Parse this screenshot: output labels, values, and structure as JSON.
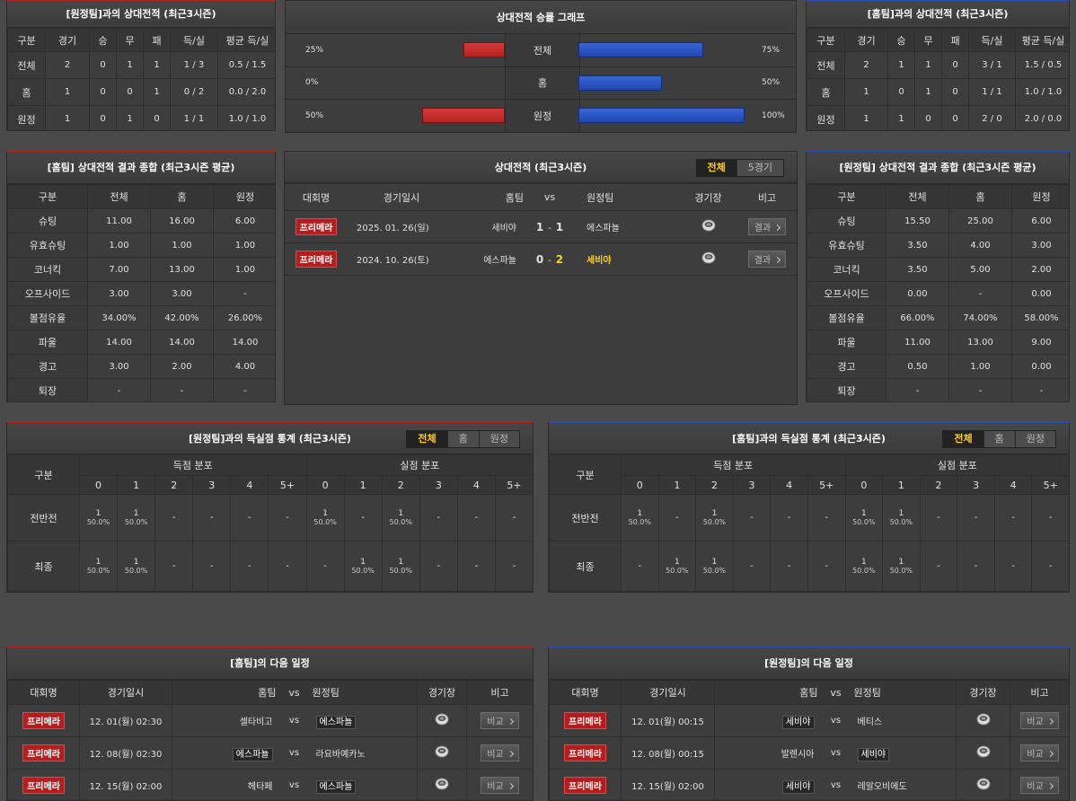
{
  "h2h_away": {
    "title": "[원정팀]과의 상대전적 (최근3시즌)",
    "header": [
      "구분",
      "경기",
      "승",
      "무",
      "패",
      "득/실",
      "평균 득/실"
    ],
    "rows": [
      [
        "전체",
        "2",
        "0",
        "1",
        "1",
        "1 / 3",
        "0.5 / 1.5"
      ],
      [
        "홈",
        "1",
        "0",
        "0",
        "1",
        "0 / 2",
        "0.0 / 2.0"
      ],
      [
        "원정",
        "1",
        "0",
        "1",
        "0",
        "1 / 1",
        "1.0 / 1.0"
      ]
    ]
  },
  "win_graph": {
    "title": "상대전적 승률 그래프",
    "rows": [
      {
        "label": "전체",
        "left": 25,
        "left_label": "25%",
        "right": 75,
        "right_label": "75%"
      },
      {
        "label": "홈",
        "left": 0,
        "left_label": "0%",
        "right": 50,
        "right_label": "50%"
      },
      {
        "label": "원정",
        "left": 50,
        "left_label": "50%",
        "right": 100,
        "right_label": "100%"
      }
    ]
  },
  "h2h_home": {
    "title": "[홈팀]과의 상대전적 (최근3시즌)",
    "header": [
      "구분",
      "경기",
      "승",
      "무",
      "패",
      "득/실",
      "평균 득/실"
    ],
    "rows": [
      [
        "전체",
        "2",
        "1",
        "1",
        "0",
        "3 / 1",
        "1.5 / 0.5"
      ],
      [
        "홈",
        "1",
        "0",
        "1",
        "0",
        "1 / 1",
        "1.0 / 1.0"
      ],
      [
        "원정",
        "1",
        "1",
        "0",
        "0",
        "2 / 0",
        "2.0 / 0.0"
      ]
    ]
  },
  "summary_home": {
    "title": "[홈팀] 상대전적 결과 종합 (최근3시즌 평균)",
    "header": [
      "구분",
      "전체",
      "홈",
      "원정"
    ],
    "rows": [
      [
        "슈팅",
        "11.00",
        "16.00",
        "6.00"
      ],
      [
        "유효슈팅",
        "1.00",
        "1.00",
        "1.00"
      ],
      [
        "코너킥",
        "7.00",
        "13.00",
        "1.00"
      ],
      [
        "오프사이드",
        "3.00",
        "3.00",
        "-"
      ],
      [
        "볼점유율",
        "34.00%",
        "42.00%",
        "26.00%"
      ],
      [
        "파울",
        "14.00",
        "14.00",
        "14.00"
      ],
      [
        "경고",
        "3.00",
        "2.00",
        "4.00"
      ],
      [
        "퇴장",
        "-",
        "-",
        "-"
      ]
    ]
  },
  "matches": {
    "title": "상대전적 (최근3시즌)",
    "tabs": [
      "전체",
      "5경기"
    ],
    "active_tab": 0,
    "header": [
      "대회명",
      "경기일시",
      "홈팀",
      "vs",
      "원정팀",
      "경기장",
      "비고"
    ],
    "rows": [
      {
        "league": "프리메라",
        "date": "2025. 01. 26(일)",
        "home": "세비야",
        "home_score": "1",
        "dash": "-",
        "away_score": "1",
        "away": "에스파뇰",
        "button": "결과"
      },
      {
        "league": "프리메라",
        "date": "2024. 10. 26(토)",
        "home": "에스파뇰",
        "home_score": "0",
        "dash": "-",
        "away_score": "2",
        "away": "세비야",
        "button": "결과",
        "winner": "away"
      }
    ]
  },
  "summary_away": {
    "title": "[원정팀] 상대전적 결과 종합 (최근3시즌 평균)",
    "header": [
      "구분",
      "전체",
      "홈",
      "원정"
    ],
    "rows": [
      [
        "슈팅",
        "15.50",
        "25.00",
        "6.00"
      ],
      [
        "유효슈팅",
        "3.50",
        "4.00",
        "3.00"
      ],
      [
        "코너킥",
        "3.50",
        "5.00",
        "2.00"
      ],
      [
        "오프사이드",
        "0.00",
        "-",
        "0.00"
      ],
      [
        "볼점유율",
        "66.00%",
        "74.00%",
        "58.00%"
      ],
      [
        "파울",
        "11.00",
        "13.00",
        "9.00"
      ],
      [
        "경고",
        "0.50",
        "1.00",
        "0.00"
      ],
      [
        "퇴장",
        "-",
        "-",
        "-"
      ]
    ]
  },
  "goals_away": {
    "title": "[원정팀]과의 득실점 통계 (최근3시즌)",
    "tabs": [
      "전체",
      "홈",
      "원정"
    ],
    "active_tab": 0,
    "label_header": "구분",
    "groups": [
      "득점 분포",
      "실점 분포"
    ],
    "columns": [
      "0",
      "1",
      "2",
      "3",
      "4",
      "5+",
      "0",
      "1",
      "2",
      "3",
      "4",
      "5+"
    ],
    "rows": [
      {
        "label": "전반전",
        "cells": [
          {
            "count": "1",
            "share": "50.0%"
          },
          {
            "count": "1",
            "share": "50.0%"
          },
          "-",
          "-",
          "-",
          "-",
          {
            "count": "1",
            "share": "50.0%"
          },
          "-",
          {
            "count": "1",
            "share": "50.0%"
          },
          "-",
          "-",
          "-"
        ]
      },
      {
        "label": "최종",
        "cells": [
          {
            "count": "1",
            "share": "50.0%"
          },
          {
            "count": "1",
            "share": "50.0%"
          },
          "-",
          "-",
          "-",
          "-",
          "-",
          {
            "count": "1",
            "share": "50.0%"
          },
          {
            "count": "1",
            "share": "50.0%"
          },
          "-",
          "-",
          "-"
        ]
      }
    ]
  },
  "goals_home": {
    "title": "[홈팀]과의 득실점 통계 (최근3시즌)",
    "tabs": [
      "전체",
      "홈",
      "원정"
    ],
    "active_tab": 0,
    "label_header": "구분",
    "groups": [
      "득점 분포",
      "실점 분포"
    ],
    "columns": [
      "0",
      "1",
      "2",
      "3",
      "4",
      "5+",
      "0",
      "1",
      "2",
      "3",
      "4",
      "5+"
    ],
    "rows": [
      {
        "label": "전반전",
        "cells": [
          {
            "count": "1",
            "share": "50.0%"
          },
          "-",
          {
            "count": "1",
            "share": "50.0%"
          },
          "-",
          "-",
          "-",
          {
            "count": "1",
            "share": "50.0%"
          },
          {
            "count": "1",
            "share": "50.0%"
          },
          "-",
          "-",
          "-",
          "-"
        ]
      },
      {
        "label": "최종",
        "cells": [
          "-",
          {
            "count": "1",
            "share": "50.0%"
          },
          {
            "count": "1",
            "share": "50.0%"
          },
          "-",
          "-",
          "-",
          {
            "count": "1",
            "share": "50.0%"
          },
          {
            "count": "1",
            "share": "50.0%"
          },
          "-",
          "-",
          "-",
          "-"
        ]
      }
    ]
  },
  "schedule_home": {
    "title": "[홈팀]의 다음 일정",
    "header": [
      "대회명",
      "경기일시",
      "홈팀",
      "vs",
      "원정팀",
      "경기장",
      "비고"
    ],
    "rows": [
      {
        "league": "프리메라",
        "date": "12. 01(월) 02:30",
        "home": "셀타비고",
        "vs": "vs",
        "away": "에스파뇰",
        "button": "비교",
        "highlight": "away"
      },
      {
        "league": "프리메라",
        "date": "12. 08(월) 02:30",
        "home": "에스파뇰",
        "vs": "vs",
        "away": "라요바예카노",
        "button": "비교",
        "highlight": "home"
      },
      {
        "league": "프리메라",
        "date": "12. 15(월) 02:00",
        "home": "헤타페",
        "vs": "vs",
        "away": "에스파뇰",
        "button": "비교",
        "highlight": "away"
      }
    ]
  },
  "schedule_away": {
    "title": "[원정팀]의 다음 일정",
    "header": [
      "대회명",
      "경기일시",
      "홈팀",
      "vs",
      "원정팀",
      "경기장",
      "비고"
    ],
    "rows": [
      {
        "league": "프리메라",
        "date": "12. 01(월) 00:15",
        "home": "세비야",
        "vs": "vs",
        "away": "베티스",
        "button": "비교",
        "highlight": "home"
      },
      {
        "league": "프리메라",
        "date": "12. 08(월) 00:15",
        "home": "발렌시아",
        "vs": "vs",
        "away": "세비야",
        "button": "비교",
        "highlight": "away"
      },
      {
        "league": "프리메라",
        "date": "12. 15(월) 02:00",
        "home": "세비야",
        "vs": "vs",
        "away": "레알오비에도",
        "button": "비교",
        "highlight": "home"
      }
    ]
  }
}
